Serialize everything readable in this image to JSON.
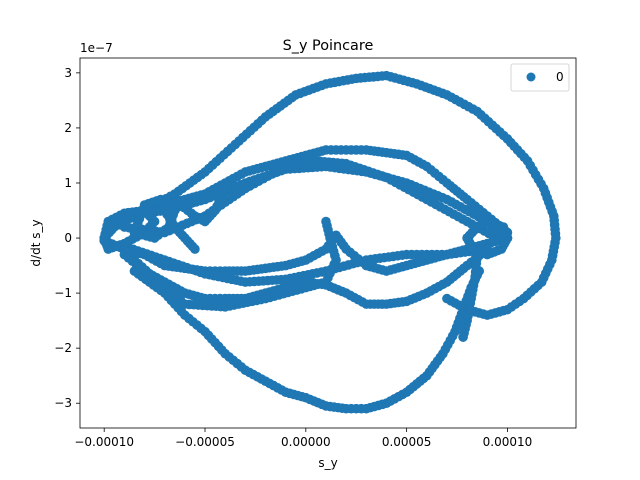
{
  "chart_data": {
    "type": "scatter",
    "title": "S_y Poincare",
    "xlabel": "s_y",
    "ylabel": "d/dt s_y",
    "y_offset_text": "1e−7",
    "xlim": [
      -0.000112,
      0.000134
    ],
    "ylim": [
      -3.45e-07,
      3.27e-07
    ],
    "x_ticks": [
      -0.0001,
      -5e-05,
      0.0,
      5e-05,
      0.0001
    ],
    "x_tick_labels": [
      "−0.00010",
      "−0.00005",
      "0.00000",
      "0.00005",
      "0.00010"
    ],
    "y_ticks": [
      -3e-07,
      -2e-07,
      -1e-07,
      0,
      1e-07,
      2e-07,
      3e-07
    ],
    "y_tick_labels": [
      "−3",
      "−2",
      "−1",
      "0",
      "1",
      "2",
      "3"
    ],
    "grid": false,
    "legend": {
      "position": "top-right",
      "entries": [
        "0"
      ]
    },
    "series": [
      {
        "name": "0",
        "color": "#1f77b4",
        "marker": "circle",
        "description_points_approx": [
          [
            -0.0001,
            0.0
          ],
          [
            -9.5e-05,
            3e-08
          ],
          [
            -9e-05,
            5e-08
          ],
          [
            -8e-05,
            6e-08
          ],
          [
            -7e-05,
            7e-08
          ],
          [
            -6e-05,
            6e-08
          ],
          [
            -4e-05,
            1e-07
          ],
          [
            -2e-05,
            1.2e-07
          ],
          [
            0.0,
            1.4e-07
          ],
          [
            2e-05,
            1.6e-07
          ],
          [
            4e-05,
            1.5e-07
          ],
          [
            6e-05,
            1e-07
          ],
          [
            8e-05,
            4e-08
          ],
          [
            0.0001,
            0.0
          ],
          [
            8e-05,
            -5e-08
          ],
          [
            6e-05,
            -1e-07
          ],
          [
            4e-05,
            -1.2e-07
          ],
          [
            2e-05,
            -1.2e-07
          ],
          [
            0.0,
            -1e-07
          ],
          [
            -2e-05,
            -9e-08
          ],
          [
            -4e-05,
            -8e-08
          ],
          [
            -6e-05,
            -6e-08
          ],
          [
            -8e-05,
            -4e-08
          ],
          [
            -9.5e-05,
            -2e-08
          ],
          [
            -6e-05,
            1.2e-07
          ],
          [
            -4e-05,
            1.8e-07
          ],
          [
            -2e-05,
            2.3e-07
          ],
          [
            0.0,
            2.7e-07
          ],
          [
            2e-05,
            2.9e-07
          ],
          [
            4e-05,
            3e-07
          ],
          [
            6e-05,
            2.8e-07
          ],
          [
            8e-05,
            2.4e-07
          ],
          [
            0.0001,
            1.8e-07
          ],
          [
            0.00011,
            1.2e-07
          ],
          [
            0.00012,
            5e-08
          ],
          [
            0.000123,
            0.0
          ],
          [
            0.00012,
            -6e-08
          ],
          [
            0.00011,
            -1.1e-07
          ],
          [
            0.0001,
            -1.3e-07
          ],
          [
            8e-05,
            -1.4e-07
          ],
          [
            6e-05,
            -1.2e-07
          ],
          [
            -6e-05,
            -8e-08
          ],
          [
            -4e-05,
            -1.6e-07
          ],
          [
            -2e-05,
            -2.2e-07
          ],
          [
            0.0,
            -2.8e-07
          ],
          [
            2e-05,
            -3e-07
          ],
          [
            4e-05,
            -3e-07
          ],
          [
            6e-05,
            -2.6e-07
          ],
          [
            7e-05,
            -2.2e-07
          ],
          [
            8e-05,
            -1.5e-07
          ],
          [
            9e-05,
            -5e-08
          ],
          [
            1.5e-05,
            -4e-08
          ],
          [
            1e-05,
            4e-08
          ],
          [
            2e-05,
            0.0
          ],
          [
            -8e-05,
            4.5e-08
          ],
          [
            -7e-05,
            2e-08
          ]
        ]
      }
    ]
  }
}
